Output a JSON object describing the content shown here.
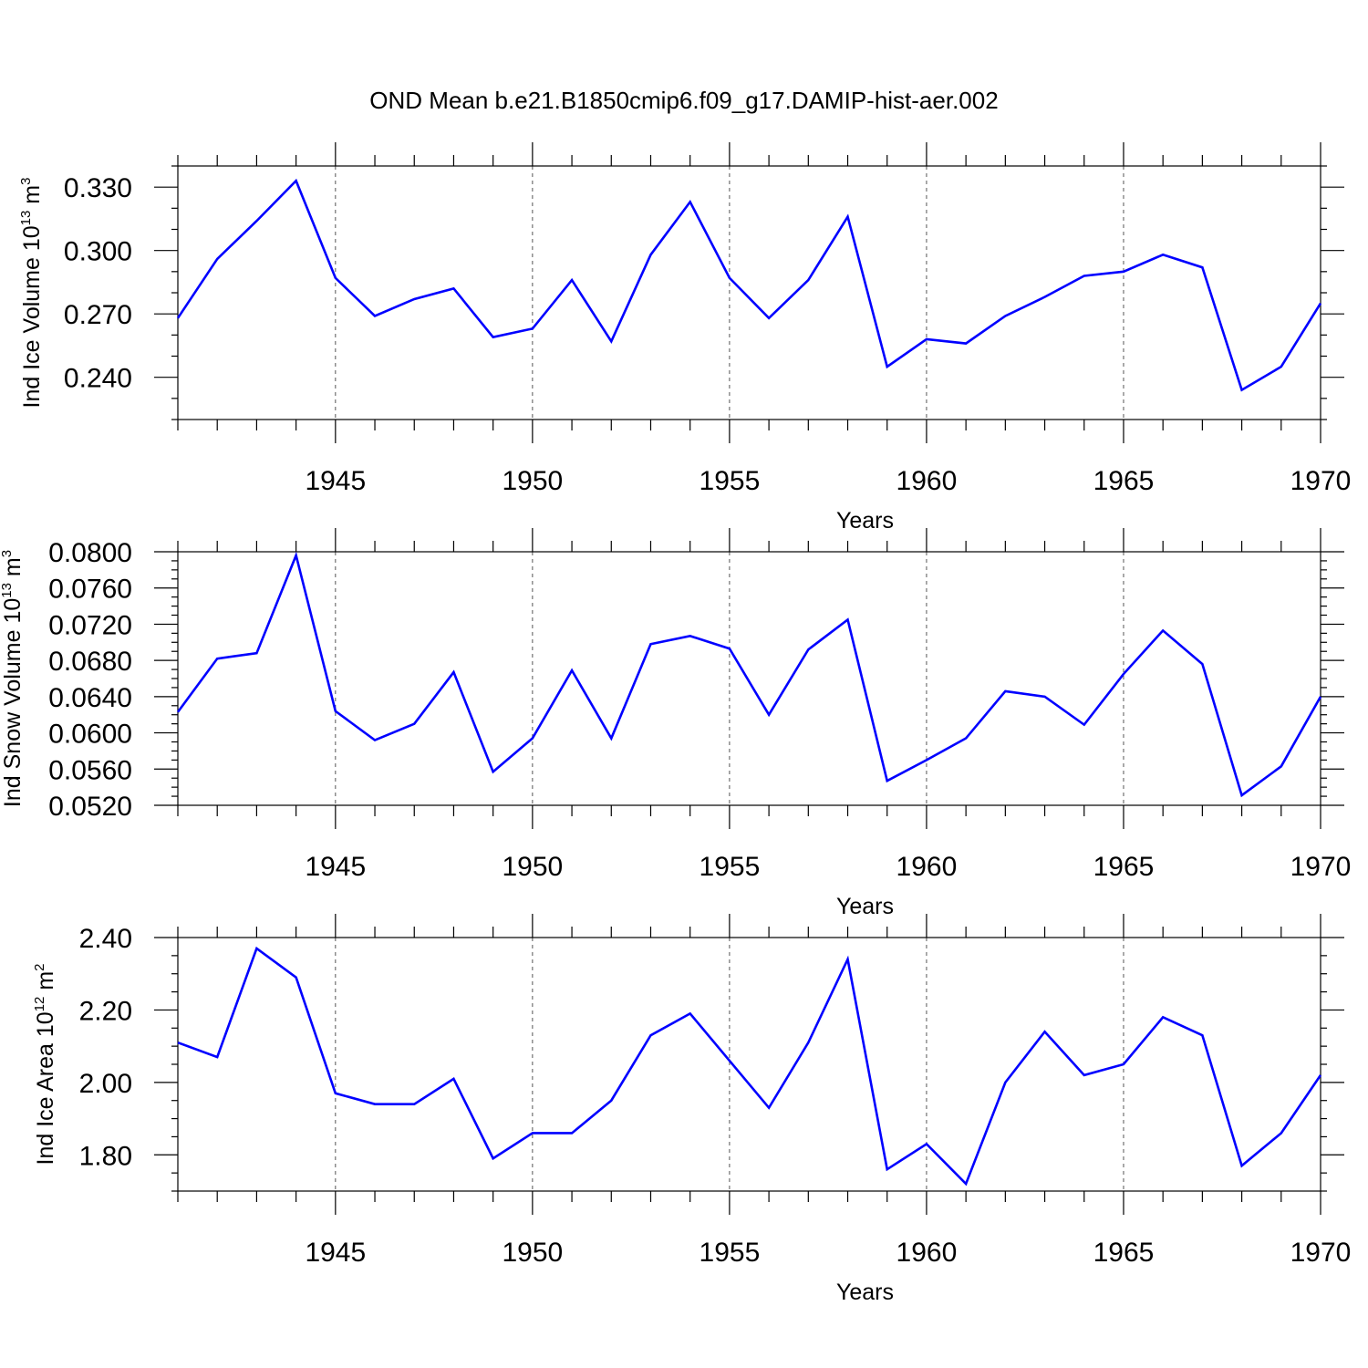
{
  "figure": {
    "title": "OND Mean b.e21.B1850cmip6.f09_g17.DAMIP-hist-aer.002"
  },
  "colors": {
    "series": "#0000ff",
    "grid": "#555555"
  },
  "chart_data": [
    {
      "type": "line",
      "id": "ice-volume",
      "title": "",
      "xlabel": "Years",
      "ylabel": "Ind Ice Volume 10",
      "ylabel_exp": "13",
      "ylabel_unit": " m",
      "ylabel_unit_exp": "3",
      "xlim": [
        1941,
        1970
      ],
      "ylim": [
        0.22,
        0.34
      ],
      "yticks": [
        0.24,
        0.27,
        0.3,
        0.33
      ],
      "yticklabels": [
        "0.240",
        "0.270",
        "0.300",
        "0.330"
      ],
      "yminor_step": 0.01,
      "xticks": [
        1945,
        1950,
        1955,
        1960,
        1965,
        1970
      ],
      "xticklabels": [
        "1945",
        "1950",
        "1955",
        "1960",
        "1965",
        "1970"
      ],
      "xgrid": [
        1945,
        1950,
        1955,
        1960,
        1965
      ],
      "x": [
        1941,
        1942,
        1943,
        1944,
        1945,
        1946,
        1947,
        1948,
        1949,
        1950,
        1951,
        1952,
        1953,
        1954,
        1955,
        1956,
        1957,
        1958,
        1959,
        1960,
        1961,
        1962,
        1963,
        1964,
        1965,
        1966,
        1967,
        1968,
        1969,
        1970
      ],
      "series": [
        {
          "values": [
            0.268,
            0.296,
            0.314,
            0.333,
            0.287,
            0.269,
            0.277,
            0.282,
            0.259,
            0.263,
            0.286,
            0.257,
            0.298,
            0.323,
            0.287,
            0.268,
            0.286,
            0.316,
            0.245,
            0.258,
            0.256,
            0.269,
            0.278,
            0.288,
            0.29,
            0.298,
            0.292,
            0.234,
            0.245,
            0.275
          ]
        }
      ]
    },
    {
      "type": "line",
      "id": "snow-volume",
      "title": "",
      "xlabel": "Years",
      "ylabel": "Ind Snow Volume 10",
      "ylabel_exp": "13",
      "ylabel_unit": " m",
      "ylabel_unit_exp": "3",
      "xlim": [
        1941,
        1970
      ],
      "ylim": [
        0.052,
        0.08
      ],
      "yticks": [
        0.052,
        0.056,
        0.06,
        0.064,
        0.068,
        0.072,
        0.076,
        0.08
      ],
      "yticklabels": [
        "0.0520",
        "0.0560",
        "0.0600",
        "0.0640",
        "0.0680",
        "0.0720",
        "0.0760",
        "0.0800"
      ],
      "yminor_step": 0.001,
      "xticks": [
        1945,
        1950,
        1955,
        1960,
        1965,
        1970
      ],
      "xticklabels": [
        "1945",
        "1950",
        "1955",
        "1960",
        "1965",
        "1970"
      ],
      "xgrid": [
        1945,
        1950,
        1955,
        1960,
        1965
      ],
      "x": [
        1941,
        1942,
        1943,
        1944,
        1945,
        1946,
        1947,
        1948,
        1949,
        1950,
        1951,
        1952,
        1953,
        1954,
        1955,
        1956,
        1957,
        1958,
        1959,
        1960,
        1961,
        1962,
        1963,
        1964,
        1965,
        1966,
        1967,
        1968,
        1969,
        1970
      ],
      "series": [
        {
          "values": [
            0.0623,
            0.0682,
            0.0688,
            0.0796,
            0.0624,
            0.0592,
            0.061,
            0.0667,
            0.0557,
            0.0594,
            0.0669,
            0.0594,
            0.0698,
            0.0707,
            0.0693,
            0.062,
            0.0692,
            0.0725,
            0.0547,
            0.057,
            0.0594,
            0.0646,
            0.064,
            0.0609,
            0.0665,
            0.0713,
            0.0676,
            0.0531,
            0.0563,
            0.064
          ]
        }
      ]
    },
    {
      "type": "line",
      "id": "ice-area",
      "title": "",
      "xlabel": "Years",
      "ylabel": "Ind Ice Area 10",
      "ylabel_exp": "12",
      "ylabel_unit": " m",
      "ylabel_unit_exp": "2",
      "xlim": [
        1941,
        1970
      ],
      "ylim": [
        1.7,
        2.4
      ],
      "yticks": [
        1.8,
        2.0,
        2.2,
        2.4
      ],
      "yticklabels": [
        "1.80",
        "2.00",
        "2.20",
        "2.40"
      ],
      "yminor_step": 0.05,
      "xticks": [
        1945,
        1950,
        1955,
        1960,
        1965,
        1970
      ],
      "xticklabels": [
        "1945",
        "1950",
        "1955",
        "1960",
        "1965",
        "1970"
      ],
      "xgrid": [
        1945,
        1950,
        1955,
        1960,
        1965
      ],
      "x": [
        1941,
        1942,
        1943,
        1944,
        1945,
        1946,
        1947,
        1948,
        1949,
        1950,
        1951,
        1952,
        1953,
        1954,
        1955,
        1956,
        1957,
        1958,
        1959,
        1960,
        1961,
        1962,
        1963,
        1964,
        1965,
        1966,
        1967,
        1968,
        1969,
        1970
      ],
      "series": [
        {
          "values": [
            2.11,
            2.07,
            2.37,
            2.29,
            1.97,
            1.94,
            1.94,
            2.01,
            1.79,
            1.86,
            1.86,
            1.95,
            2.13,
            2.19,
            2.06,
            1.93,
            2.11,
            2.34,
            1.76,
            1.83,
            1.72,
            2.0,
            2.14,
            2.02,
            2.05,
            2.18,
            2.13,
            1.77,
            1.86,
            2.02
          ]
        }
      ]
    }
  ]
}
